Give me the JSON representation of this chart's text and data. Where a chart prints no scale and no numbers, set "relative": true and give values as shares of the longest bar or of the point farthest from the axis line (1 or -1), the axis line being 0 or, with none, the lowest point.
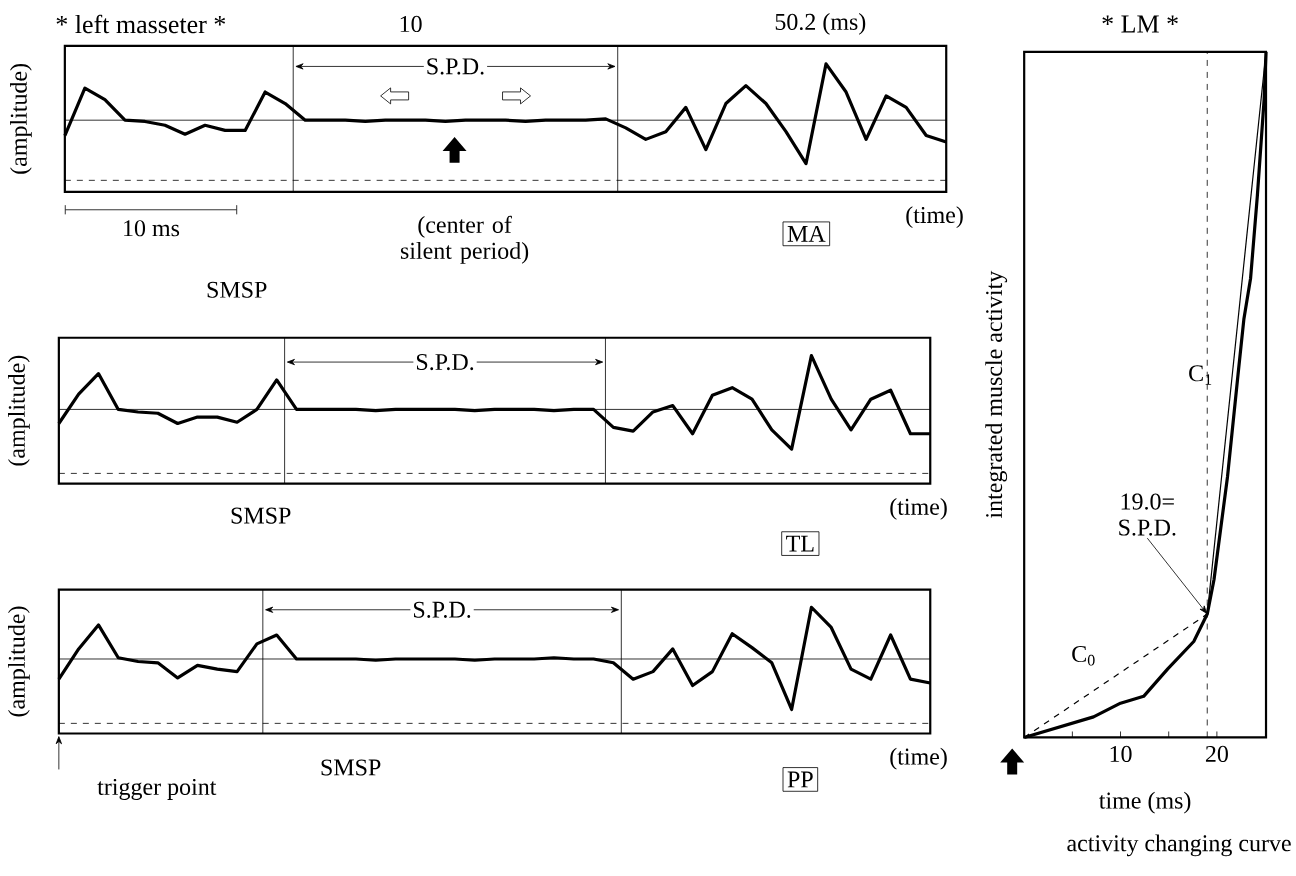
{
  "chart_data": [
    {
      "type": "line",
      "relative": true,
      "title": "* left masseter *",
      "xlabel": "(time)",
      "ylabel": "(amplitude)",
      "categories": [
        null,
        null,
        null,
        null,
        null,
        null,
        null,
        null,
        null,
        null,
        null,
        null,
        null,
        null,
        null,
        null,
        null,
        null,
        null,
        null,
        null,
        null,
        null,
        null,
        null,
        null,
        null,
        null,
        null,
        null,
        null,
        null,
        null,
        null,
        null,
        null,
        null,
        null,
        null,
        null,
        null,
        null,
        null,
        null,
        null
      ],
      "series": [
        {
          "color": "#000000",
          "values": [
            0.44,
            0.81,
            0.72,
            0.56,
            0.55,
            0.52,
            0.45,
            0.52,
            0.48,
            0.48,
            0.78,
            0.69,
            0.56,
            0.56,
            0.56,
            0.55,
            0.56,
            0.56,
            0.56,
            0.55,
            0.56,
            0.56,
            0.56,
            0.55,
            0.56,
            0.56,
            0.56,
            0.57,
            0.5,
            0.41,
            0.47,
            0.66,
            0.33,
            0.69,
            0.83,
            0.69,
            0.47,
            0.22,
            1.0,
            0.78,
            0.41,
            0.75,
            0.66,
            0.44,
            0.39
          ]
        }
      ],
      "tick_labels": false,
      "ref_lines": [
        {
          "axis": "y",
          "value": 0.56
        },
        {
          "axis": "y",
          "value": 0.09,
          "line_style": "dashed"
        }
      ],
      "annotations": [
        "10",
        "50.2 (ms)",
        "S.P.D.",
        "(center of silent period)",
        "SMSP",
        "10 ms",
        "MA"
      ]
    },
    {
      "type": "line",
      "relative": true,
      "xlabel": "(time)",
      "ylabel": "(amplitude)",
      "categories": [
        null,
        null,
        null,
        null,
        null,
        null,
        null,
        null,
        null,
        null,
        null,
        null,
        null,
        null,
        null,
        null,
        null,
        null,
        null,
        null,
        null,
        null,
        null,
        null,
        null,
        null,
        null,
        null,
        null,
        null,
        null,
        null,
        null,
        null,
        null,
        null,
        null,
        null,
        null,
        null,
        null,
        null,
        null,
        null,
        null
      ],
      "series": [
        {
          "color": "#000000",
          "values": [
            0.47,
            0.7,
            0.86,
            0.58,
            0.56,
            0.55,
            0.47,
            0.52,
            0.52,
            0.48,
            0.58,
            0.81,
            0.58,
            0.58,
            0.58,
            0.58,
            0.57,
            0.58,
            0.58,
            0.58,
            0.58,
            0.57,
            0.58,
            0.58,
            0.58,
            0.57,
            0.58,
            0.58,
            0.44,
            0.41,
            0.56,
            0.61,
            0.39,
            0.69,
            0.75,
            0.66,
            0.42,
            0.27,
            1.0,
            0.66,
            0.42,
            0.66,
            0.73,
            0.39,
            0.39
          ]
        }
      ],
      "tick_labels": false,
      "ref_lines": [
        {
          "axis": "y",
          "value": 0.58
        },
        {
          "axis": "y",
          "value": 0.08,
          "line_style": "dashed"
        }
      ],
      "annotations": [
        "S.P.D.",
        "SMSP",
        "TL"
      ]
    },
    {
      "type": "line",
      "relative": true,
      "xlabel": "(time)",
      "ylabel": "(amplitude)",
      "categories": [
        null,
        null,
        null,
        null,
        null,
        null,
        null,
        null,
        null,
        null,
        null,
        null,
        null,
        null,
        null,
        null,
        null,
        null,
        null,
        null,
        null,
        null,
        null,
        null,
        null,
        null,
        null,
        null,
        null,
        null,
        null,
        null,
        null,
        null,
        null,
        null,
        null,
        null,
        null,
        null,
        null,
        null,
        null,
        null,
        null
      ],
      "series": [
        {
          "color": "#000000",
          "values": [
            0.43,
            0.67,
            0.86,
            0.6,
            0.57,
            0.56,
            0.44,
            0.54,
            0.51,
            0.49,
            0.71,
            0.78,
            0.59,
            0.59,
            0.59,
            0.59,
            0.58,
            0.59,
            0.59,
            0.59,
            0.59,
            0.58,
            0.59,
            0.59,
            0.59,
            0.6,
            0.59,
            0.59,
            0.56,
            0.43,
            0.49,
            0.67,
            0.38,
            0.49,
            0.79,
            0.68,
            0.56,
            0.19,
            1.0,
            0.84,
            0.51,
            0.43,
            0.78,
            0.43,
            0.4
          ]
        }
      ],
      "tick_labels": false,
      "ref_lines": [
        {
          "axis": "y",
          "value": 0.59
        },
        {
          "axis": "y",
          "value": 0.08,
          "line_style": "dashed"
        }
      ],
      "annotations": [
        "S.P.D.",
        "SMSP",
        "trigger point",
        "PP"
      ]
    },
    {
      "type": "line",
      "relative": true,
      "title": "* LM *",
      "xlabel": "time (ms)",
      "ylabel": "integrated muscle activity",
      "series": [
        {
          "color": "#000000",
          "x": [
            0,
            2.4,
            7.2,
            10.0,
            12.4,
            14.9,
            17.6,
            19.0,
            19.7,
            21.1,
            22.2,
            22.8,
            23.5,
            24.2,
            24.9,
            25.1
          ],
          "values": [
            0,
            0.01,
            0.03,
            0.05,
            0.06,
            0.1,
            0.14,
            0.18,
            0.23,
            0.38,
            0.53,
            0.61,
            0.67,
            0.79,
            0.93,
            1.0
          ]
        },
        {
          "name": "C$_{0}$",
          "color": "#000000",
          "line_style": "dashed",
          "x": [
            0,
            19.0
          ],
          "values": [
            0,
            0.18
          ]
        },
        {
          "name": "C$_{1}$",
          "color": "#000000",
          "x": [
            19.0,
            25.1
          ],
          "values": [
            0.18,
            1.0
          ]
        }
      ],
      "xlim": [
        0,
        25.1
      ],
      "xticks": [
        {
          "value": 5,
          "label": null
        },
        10,
        {
          "value": 15,
          "label": null
        },
        20
      ],
      "tick_labels": "x",
      "ref_lines": [
        {
          "axis": "x",
          "value": 19.0,
          "line_style": "dashed"
        }
      ],
      "annotations": [
        {
          "text": "19.0= S.P.D.",
          "x": 19.0,
          "y": 0.18
        },
        "activity changing curve"
      ]
    }
  ]
}
